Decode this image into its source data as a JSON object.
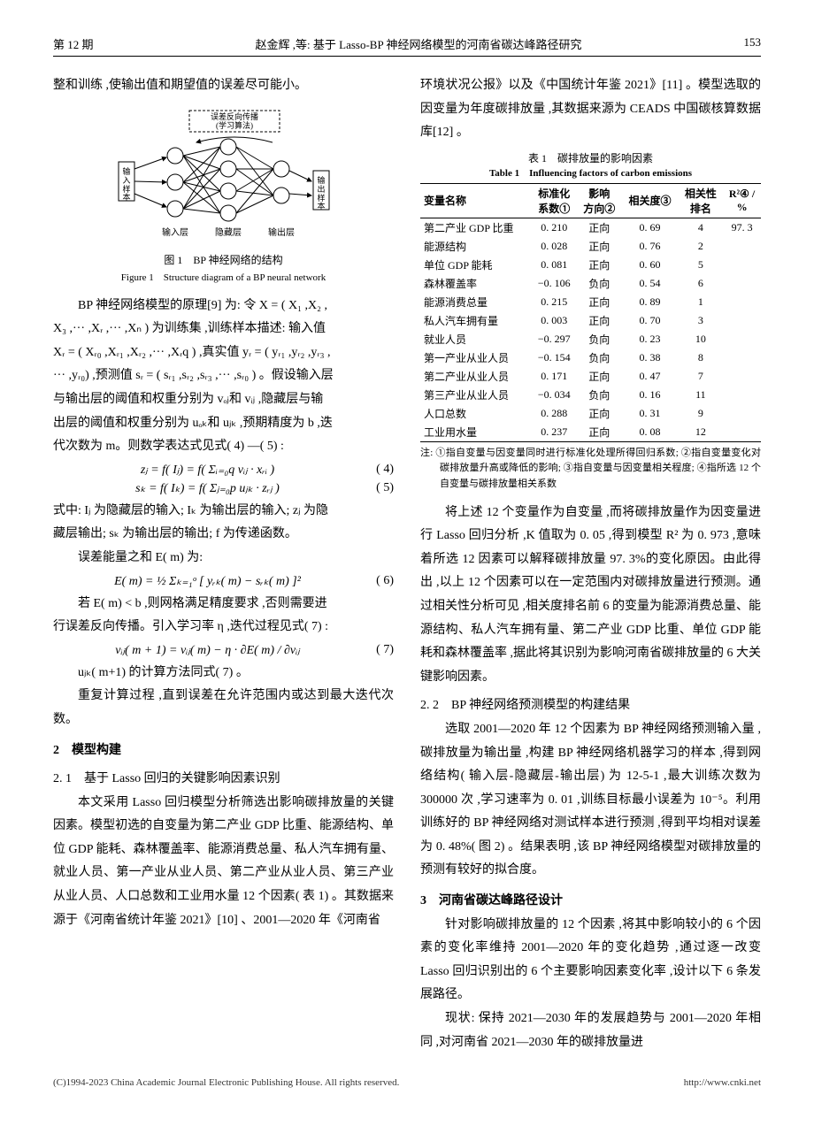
{
  "header": {
    "issue": "第 12 期",
    "running": "赵金辉 ,等: 基于 Lasso-BP 神经网络模型的河南省碳达峰路径研究",
    "page": "153"
  },
  "left": {
    "p0": "整和训练 ,使输出值和期望值的误差尽可能小。",
    "nn": {
      "label_err": "误差反向传播\n(学习算法)",
      "label_in": "输入样本",
      "label_out": "输出样本",
      "lay_in": "输入层",
      "lay_hid": "隐藏层",
      "lay_out": "输出层"
    },
    "figcap": "图 1　BP 神经网络的结构",
    "figcap_en": "Figure 1　Structure diagram of a BP neural network",
    "p1a": "BP 神经网络模型的原理[9] 为: 令 X = ( X₁ ,X₂ ,",
    "p1b": "X₃ ,··· ,Xᵣ ,··· ,Xₙ ) 为训练集 ,训练样本描述: 输入值",
    "p1c": "Xᵣ = ( Xᵣ₀ ,Xᵣ₁ ,Xᵣ₂ ,··· ,Xᵣq ) ,真实值 yᵣ = ( yᵣ₁ ,yᵣ₂ ,yᵣ₃ ,",
    "p1d": "··· ,yᵣ₀) ,预测值 sᵣ = ( sᵣ₁ ,sᵣ₂ ,sᵣ₃ ,··· ,sᵣ₀ ) 。假设输入层",
    "p1e": "与输出层的阈值和权重分别为 vₒⱼ和 vᵢⱼ ,隐藏层与输",
    "p1f": "出层的阈值和权重分别为 uₒₖ和 uⱼₖ ,预期精度为 b ,迭",
    "p1g": "代次数为 m。则数学表达式见式( 4) —( 5) :",
    "eq4": "zⱼ = f( Iⱼ)  = f(  Σᵢ₌₀q  vᵢⱼ · xᵣᵢ )",
    "eq4n": "( 4)",
    "eq5": "sₖ = f( Iₖ)  = f(  Σⱼ₌₀p  uⱼₖ · zᵣⱼ )",
    "eq5n": "( 5)",
    "p2a": "式中: Iⱼ 为隐藏层的输入; Iₖ 为输出层的输入; zⱼ 为隐",
    "p2b": "藏层输出; sₖ 为输出层的输出; f 为传递函数。",
    "p3": "误差能量之和 E( m) 为:",
    "eq6": "E( m)  = ½ Σₖ₌₁ᵒ [ yᵣₖ( m)  − sᵣₖ( m) ]²",
    "eq6n": "( 6)",
    "p4a": "若 E( m) < b ,则网格满足精度要求 ,否则需要进",
    "p4b": "行误差反向传播。引入学习率 η ,迭代过程见式( 7) :",
    "eq7": "vᵢⱼ( m + 1)  = vᵢⱼ( m)  − η · ∂E( m) / ∂vᵢⱼ",
    "eq7n": "( 7)",
    "p5": "uⱼₖ( m+1) 的计算方法同式( 7) 。",
    "p6": "重复计算过程 ,直到误差在允许范围内或达到最大迭代次数。",
    "sec2": "2　模型构建",
    "sub21": "2. 1　基于 Lasso 回归的关键影响因素识别",
    "p7": "本文采用 Lasso 回归模型分析筛选出影响碳排放量的关键因素。模型初选的自变量为第二产业 GDP 比重、能源结构、单位 GDP 能耗、森林覆盖率、能源消费总量、私人汽车拥有量、就业人员、第一产业从业人员、第二产业从业人员、第三产业从业人员、人口总数和工业用水量 12 个因素( 表 1) 。其数据来源于《河南省统计年鉴 2021》[10] 、2001—2020 年《河南省"
  },
  "right": {
    "p0": "环境状况公报》以及《中国统计年鉴 2021》[11] 。模型选取的因变量为年度碳排放量 ,其数据来源为 CEADS 中国碳核算数据库[12] 。",
    "tabcap": "表 1　碳排放量的影响因素",
    "tabcap_en": "Table 1　Influencing factors of carbon emissions",
    "table": {
      "head": [
        "变量名称",
        "标准化\n系数①",
        "影响\n方向②",
        "相关度③",
        "相关性\n排名",
        "R²④ /\n%"
      ],
      "rows": [
        [
          "第二产业 GDP 比重",
          "0. 210",
          "正向",
          "0. 69",
          "4",
          "97. 3"
        ],
        [
          "能源结构",
          "0. 028",
          "正向",
          "0. 76",
          "2",
          ""
        ],
        [
          "单位 GDP 能耗",
          "0. 081",
          "正向",
          "0. 60",
          "5",
          ""
        ],
        [
          "森林覆盖率",
          "−0. 106",
          "负向",
          "0. 54",
          "6",
          ""
        ],
        [
          "能源消费总量",
          "0. 215",
          "正向",
          "0. 89",
          "1",
          ""
        ],
        [
          "私人汽车拥有量",
          "0. 003",
          "正向",
          "0. 70",
          "3",
          ""
        ],
        [
          "就业人员",
          "−0. 297",
          "负向",
          "0. 23",
          "10",
          ""
        ],
        [
          "第一产业从业人员",
          "−0. 154",
          "负向",
          "0. 38",
          "8",
          ""
        ],
        [
          "第二产业从业人员",
          "0. 171",
          "正向",
          "0. 47",
          "7",
          ""
        ],
        [
          "第三产业从业人员",
          "−0. 034",
          "负向",
          "0. 16",
          "11",
          ""
        ],
        [
          "人口总数",
          "0. 288",
          "正向",
          "0. 31",
          "9",
          ""
        ],
        [
          "工业用水量",
          "0. 237",
          "正向",
          "0. 08",
          "12",
          ""
        ]
      ]
    },
    "tnote": "注: ①指自变量与因变量同时进行标准化处理所得回归系数; ②指自变量变化对碳排放量升高或降低的影响; ③指自变量与因变量相关程度; ④指所选 12 个自变量与碳排放量相关系数",
    "p1": "将上述 12 个变量作为自变量 ,而将碳排放量作为因变量进行 Lasso 回归分析 ,K 值取为 0. 05 ,得到模型 R² 为 0. 973 ,意味着所选 12 因素可以解释碳排放量 97. 3%的变化原因。由此得出 ,以上 12 个因素可以在一定范围内对碳排放量进行预测。通过相关性分析可见 ,相关度排名前 6 的变量为能源消费总量、能源结构、私人汽车拥有量、第二产业 GDP 比重、单位 GDP 能耗和森林覆盖率 ,据此将其识别为影响河南省碳排放量的 6 大关键影响因素。",
    "sub22": "2. 2　BP 神经网络预测模型的构建结果",
    "p2": "选取 2001—2020 年 12 个因素为 BP 神经网络预测输入量 ,碳排放量为输出量 ,构建 BP 神经网络机器学习的样本 ,得到网络结构( 输入层-隐藏层-输出层) 为 12-5-1 ,最大训练次数为 300000 次 ,学习速率为 0. 01 ,训练目标最小误差为 10⁻⁵。利用训练好的 BP 神经网络对测试样本进行预测 ,得到平均相对误差为 0. 48%( 图 2) 。结果表明 ,该 BP 神经网络模型对碳排放量的预测有较好的拟合度。",
    "sec3": "3　河南省碳达峰路径设计",
    "p3": "针对影响碳排放量的 12 个因素 ,将其中影响较小的 6 个因素的变化率维持 2001—2020 年的变化趋势 ,通过逐一改变 Lasso 回归识别出的 6 个主要影响因素变化率 ,设计以下 6 条发展路径。",
    "p4": "现状: 保持 2021—2030 年的发展趋势与 2001—2020 年相同 ,对河南省 2021—2030 年的碳排放量进"
  },
  "footer": {
    "left": "(C)1994-2023 China Academic Journal Electronic Publishing House. All rights reserved.",
    "right": "http://www.cnki.net"
  }
}
